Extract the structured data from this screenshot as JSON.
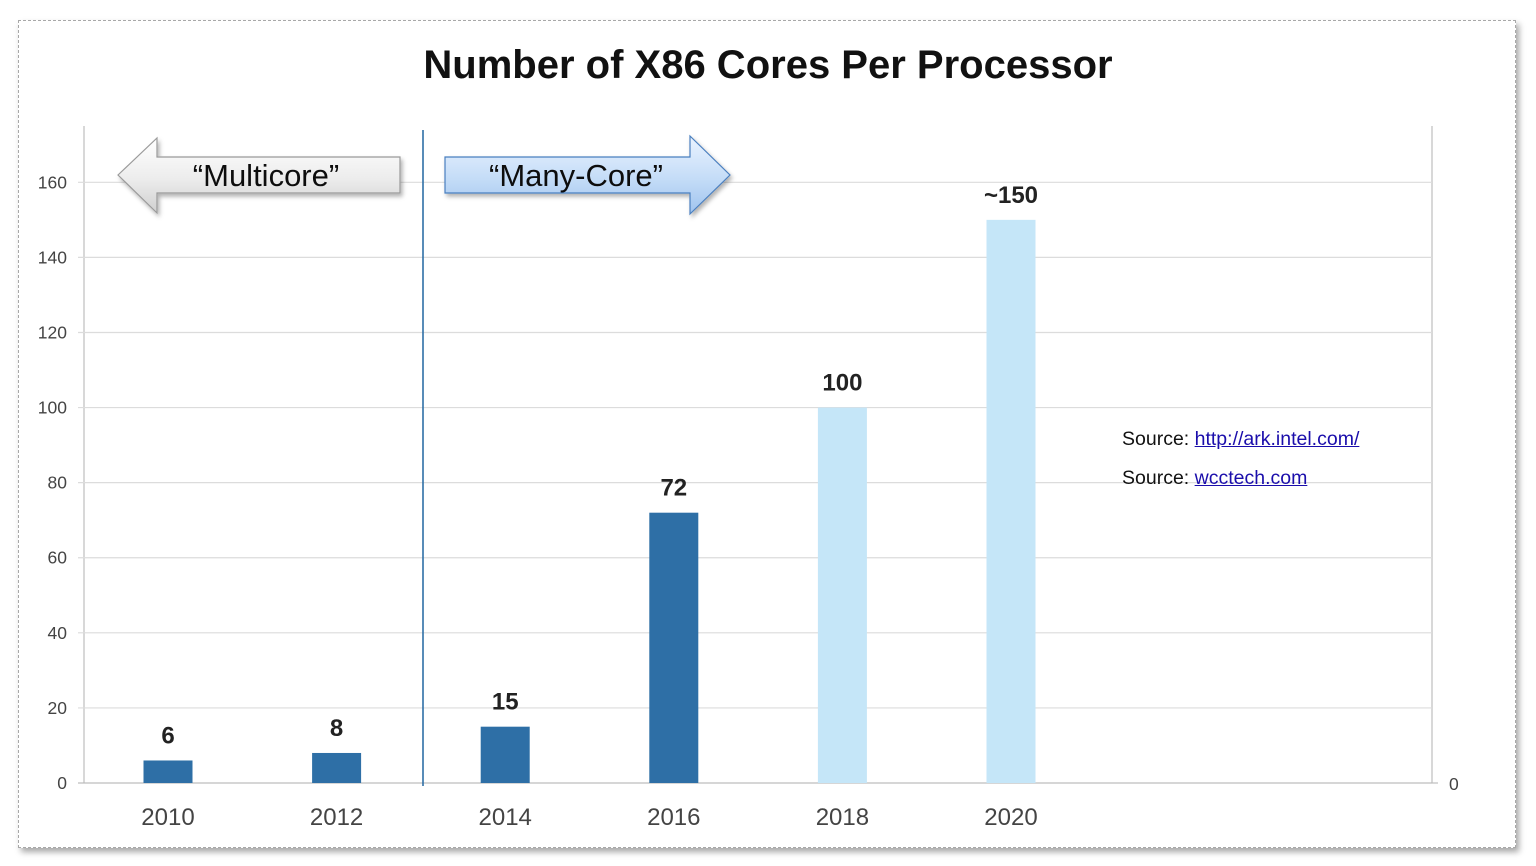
{
  "chart_data": {
    "type": "bar",
    "title": "Number of X86 Cores Per Processor",
    "categories": [
      "2010",
      "2012",
      "2014",
      "2016",
      "2018",
      "2020"
    ],
    "values": [
      6,
      8,
      15,
      72,
      100,
      150
    ],
    "data_labels": [
      "6",
      "8",
      "15",
      "72",
      "100",
      "~150"
    ],
    "bar_colors": [
      "#2e6fa6",
      "#2e6fa6",
      "#2e6fa6",
      "#2e6fa6",
      "#c5e6f8",
      "#c5e6f8"
    ],
    "ylim": [
      0,
      175
    ],
    "yticks": [
      0,
      20,
      40,
      60,
      80,
      100,
      120,
      140,
      160
    ],
    "secondary_axis_tick": "0",
    "grid": true,
    "xlabel": "",
    "ylabel": "",
    "annotations": {
      "left_arrow": "“Multicore”",
      "right_arrow": "“Many-Core”",
      "divider_between": [
        "2012",
        "2014"
      ]
    },
    "sources": [
      {
        "prefix": "Source:",
        "link": "http://ark.intel.com/"
      },
      {
        "prefix": "Source:",
        "link": "wcctech.com"
      }
    ]
  }
}
